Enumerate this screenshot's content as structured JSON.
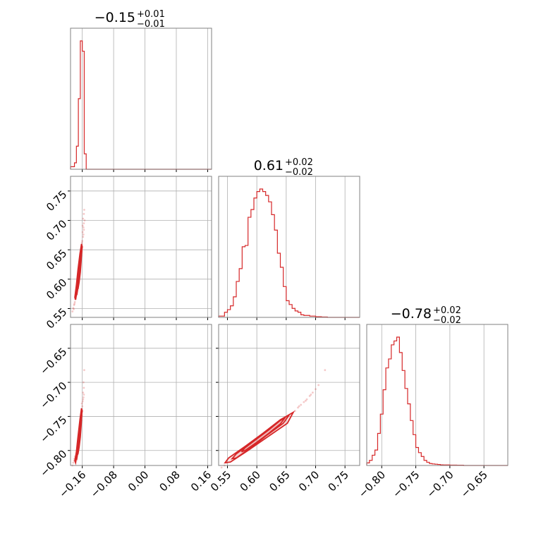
{
  "chart_data": {
    "type": "corner",
    "color": "#d62728",
    "parameters": [
      {
        "title_value": "−0.15",
        "title_upper": "+0.01",
        "title_lower": "−0.01",
        "range": [
          -0.19,
          0.17
        ],
        "ticks": [
          -0.16,
          -0.08,
          0.0,
          0.08,
          0.16
        ],
        "tick_labels": [
          "−0.16",
          "−0.08",
          "0.00",
          "0.08",
          "0.16"
        ],
        "hist": {
          "edges": [
            -0.19,
            -0.18,
            -0.175,
            -0.17,
            -0.165,
            -0.16,
            -0.155,
            -0.15,
            -0.145,
            -0.14,
            -0.13
          ],
          "counts": [
            0.02,
            0.05,
            0.18,
            0.55,
            1.0,
            0.92,
            0.12,
            0.0,
            0.0,
            0.0
          ]
        }
      },
      {
        "title_value": "0.61",
        "title_upper": "+0.02",
        "title_lower": "−0.02",
        "range": [
          0.535,
          0.775
        ],
        "ticks": [
          0.55,
          0.6,
          0.65,
          0.7,
          0.75
        ],
        "tick_labels": [
          "0.55",
          "0.60",
          "0.65",
          "0.70",
          "0.75"
        ],
        "hist": {
          "edges": [
            0.535,
            0.545,
            0.55,
            0.555,
            0.56,
            0.565,
            0.57,
            0.575,
            0.58,
            0.585,
            0.59,
            0.595,
            0.6,
            0.605,
            0.61,
            0.615,
            0.62,
            0.625,
            0.63,
            0.635,
            0.64,
            0.645,
            0.65,
            0.655,
            0.66,
            0.665,
            0.67,
            0.675,
            0.68,
            0.69,
            0.7,
            0.71,
            0.72
          ],
          "counts": [
            0.01,
            0.04,
            0.06,
            0.09,
            0.16,
            0.28,
            0.38,
            0.55,
            0.56,
            0.78,
            0.84,
            0.93,
            0.98,
            1.0,
            0.98,
            0.95,
            0.9,
            0.8,
            0.68,
            0.5,
            0.39,
            0.24,
            0.13,
            0.1,
            0.07,
            0.05,
            0.04,
            0.02,
            0.015,
            0.01,
            0.005,
            0.003
          ]
        }
      },
      {
        "title_value": "−0.78",
        "title_upper": "+0.02",
        "title_lower": "−0.02",
        "range": [
          -0.822,
          -0.615
        ],
        "ticks": [
          -0.8,
          -0.75,
          -0.7,
          -0.65
        ],
        "tick_labels": [
          "−0.80",
          "−0.75",
          "−0.70",
          "−0.65"
        ],
        "hist": {
          "edges": [
            -0.822,
            -0.818,
            -0.814,
            -0.81,
            -0.806,
            -0.802,
            -0.798,
            -0.794,
            -0.79,
            -0.786,
            -0.782,
            -0.778,
            -0.774,
            -0.77,
            -0.766,
            -0.762,
            -0.758,
            -0.754,
            -0.75,
            -0.746,
            -0.742,
            -0.738,
            -0.734,
            -0.73,
            -0.726,
            -0.722,
            -0.718,
            -0.714,
            -0.71,
            -0.7,
            -0.69,
            -0.68
          ],
          "counts": [
            0.02,
            0.04,
            0.08,
            0.12,
            0.25,
            0.4,
            0.59,
            0.76,
            0.83,
            0.94,
            0.97,
            1.0,
            0.88,
            0.74,
            0.6,
            0.48,
            0.35,
            0.24,
            0.14,
            0.1,
            0.07,
            0.04,
            0.025,
            0.015,
            0.012,
            0.01,
            0.008,
            0.005,
            0.004,
            0.003,
            0.002
          ]
        }
      }
    ],
    "pairs": [
      {
        "x": 0,
        "y": 1,
        "contours": [
          {
            "level": 0.5,
            "points": [
              [
                -0.171,
                0.583
              ],
              [
                -0.168,
                0.595
              ],
              [
                -0.165,
                0.612
              ],
              [
                -0.163,
                0.63
              ],
              [
                -0.162,
                0.642
              ],
              [
                -0.164,
                0.645
              ],
              [
                -0.166,
                0.632
              ],
              [
                -0.168,
                0.614
              ],
              [
                -0.17,
                0.597
              ],
              [
                -0.172,
                0.586
              ]
            ]
          },
          {
            "level": 0.9,
            "points": [
              [
                -0.174,
                0.573
              ],
              [
                -0.17,
                0.59
              ],
              [
                -0.166,
                0.612
              ],
              [
                -0.163,
                0.636
              ],
              [
                -0.161,
                0.648
              ],
              [
                -0.163,
                0.652
              ],
              [
                -0.166,
                0.638
              ],
              [
                -0.17,
                0.614
              ],
              [
                -0.173,
                0.593
              ],
              [
                -0.176,
                0.577
              ]
            ]
          },
          {
            "level": 0.98,
            "points": [
              [
                -0.177,
                0.565
              ],
              [
                -0.172,
                0.586
              ],
              [
                -0.167,
                0.612
              ],
              [
                -0.163,
                0.64
              ],
              [
                -0.16,
                0.655
              ],
              [
                -0.162,
                0.66
              ],
              [
                -0.166,
                0.643
              ],
              [
                -0.171,
                0.616
              ],
              [
                -0.175,
                0.59
              ],
              [
                -0.179,
                0.569
              ]
            ]
          }
        ],
        "scatter": [
          [
            -0.185,
            0.545
          ],
          [
            -0.183,
            0.551
          ],
          [
            -0.181,
            0.556
          ],
          [
            -0.179,
            0.561
          ],
          [
            -0.178,
            0.566
          ],
          [
            -0.176,
            0.572
          ],
          [
            -0.174,
            0.579
          ],
          [
            -0.16,
            0.665
          ],
          [
            -0.158,
            0.672
          ],
          [
            -0.159,
            0.68
          ],
          [
            -0.157,
            0.688
          ],
          [
            -0.156,
            0.695
          ],
          [
            -0.158,
            0.703
          ],
          [
            -0.156,
            0.711
          ],
          [
            -0.155,
            0.718
          ],
          [
            -0.161,
            0.662
          ],
          [
            -0.157,
            0.676
          ],
          [
            -0.156,
            0.684
          ],
          [
            -0.182,
            0.549
          ],
          [
            -0.18,
            0.558
          ],
          [
            -0.154,
            0.7
          ],
          [
            -0.159,
            0.691
          ]
        ]
      },
      {
        "x": 0,
        "y": 2,
        "contours": [
          {
            "level": 0.5,
            "points": [
              [
                -0.171,
                -0.805
              ],
              [
                -0.168,
                -0.795
              ],
              [
                -0.165,
                -0.78
              ],
              [
                -0.163,
                -0.764
              ],
              [
                -0.162,
                -0.755
              ],
              [
                -0.164,
                -0.753
              ],
              [
                -0.166,
                -0.766
              ],
              [
                -0.168,
                -0.783
              ],
              [
                -0.17,
                -0.798
              ],
              [
                -0.172,
                -0.806
              ]
            ]
          },
          {
            "level": 0.9,
            "points": [
              [
                -0.174,
                -0.812
              ],
              [
                -0.17,
                -0.798
              ],
              [
                -0.166,
                -0.778
              ],
              [
                -0.163,
                -0.758
              ],
              [
                -0.161,
                -0.748
              ],
              [
                -0.163,
                -0.745
              ],
              [
                -0.166,
                -0.76
              ],
              [
                -0.17,
                -0.782
              ],
              [
                -0.173,
                -0.8
              ],
              [
                -0.176,
                -0.81
              ]
            ]
          },
          {
            "level": 0.98,
            "points": [
              [
                -0.177,
                -0.818
              ],
              [
                -0.172,
                -0.8
              ],
              [
                -0.167,
                -0.776
              ],
              [
                -0.163,
                -0.752
              ],
              [
                -0.16,
                -0.742
              ],
              [
                -0.162,
                -0.738
              ],
              [
                -0.166,
                -0.755
              ],
              [
                -0.171,
                -0.78
              ],
              [
                -0.175,
                -0.802
              ],
              [
                -0.179,
                -0.815
              ]
            ]
          }
        ],
        "scatter": [
          [
            -0.185,
            -0.822
          ],
          [
            -0.183,
            -0.818
          ],
          [
            -0.181,
            -0.815
          ],
          [
            -0.16,
            -0.735
          ],
          [
            -0.159,
            -0.728
          ],
          [
            -0.157,
            -0.722
          ],
          [
            -0.158,
            -0.715
          ],
          [
            -0.156,
            -0.708
          ],
          [
            -0.157,
            -0.7
          ],
          [
            -0.155,
            -0.682
          ],
          [
            -0.161,
            -0.731
          ],
          [
            -0.156,
            -0.718
          ],
          [
            -0.158,
            -0.725
          ],
          [
            -0.18,
            -0.812
          ],
          [
            -0.178,
            -0.809
          ]
        ]
      },
      {
        "x": 1,
        "y": 2,
        "contours": [
          {
            "level": 0.5,
            "points": [
              [
                0.58,
                -0.796
              ],
              [
                0.6,
                -0.783
              ],
              [
                0.62,
                -0.77
              ],
              [
                0.64,
                -0.756
              ],
              [
                0.648,
                -0.752
              ],
              [
                0.64,
                -0.761
              ],
              [
                0.62,
                -0.775
              ],
              [
                0.6,
                -0.788
              ],
              [
                0.58,
                -0.8
              ],
              [
                0.574,
                -0.802
              ]
            ]
          },
          {
            "level": 0.9,
            "points": [
              [
                0.565,
                -0.805
              ],
              [
                0.59,
                -0.789
              ],
              [
                0.615,
                -0.772
              ],
              [
                0.64,
                -0.755
              ],
              [
                0.655,
                -0.748
              ],
              [
                0.645,
                -0.76
              ],
              [
                0.615,
                -0.779
              ],
              [
                0.59,
                -0.796
              ],
              [
                0.565,
                -0.811
              ],
              [
                0.558,
                -0.812
              ]
            ]
          },
          {
            "level": 0.98,
            "points": [
              [
                0.552,
                -0.811
              ],
              [
                0.58,
                -0.794
              ],
              [
                0.61,
                -0.775
              ],
              [
                0.64,
                -0.755
              ],
              [
                0.662,
                -0.744
              ],
              [
                0.652,
                -0.76
              ],
              [
                0.615,
                -0.782
              ],
              [
                0.585,
                -0.8
              ],
              [
                0.555,
                -0.817
              ],
              [
                0.546,
                -0.818
              ]
            ]
          }
        ],
        "scatter": [
          [
            0.545,
            -0.822
          ],
          [
            0.54,
            -0.825
          ],
          [
            0.548,
            -0.818
          ],
          [
            0.665,
            -0.742
          ],
          [
            0.67,
            -0.737
          ],
          [
            0.675,
            -0.733
          ],
          [
            0.68,
            -0.729
          ],
          [
            0.685,
            -0.725
          ],
          [
            0.69,
            -0.72
          ],
          [
            0.695,
            -0.715
          ],
          [
            0.7,
            -0.71
          ],
          [
            0.705,
            -0.704
          ],
          [
            0.716,
            -0.682
          ],
          [
            0.672,
            -0.735
          ],
          [
            0.683,
            -0.727
          ],
          [
            0.692,
            -0.718
          ]
        ]
      }
    ]
  }
}
